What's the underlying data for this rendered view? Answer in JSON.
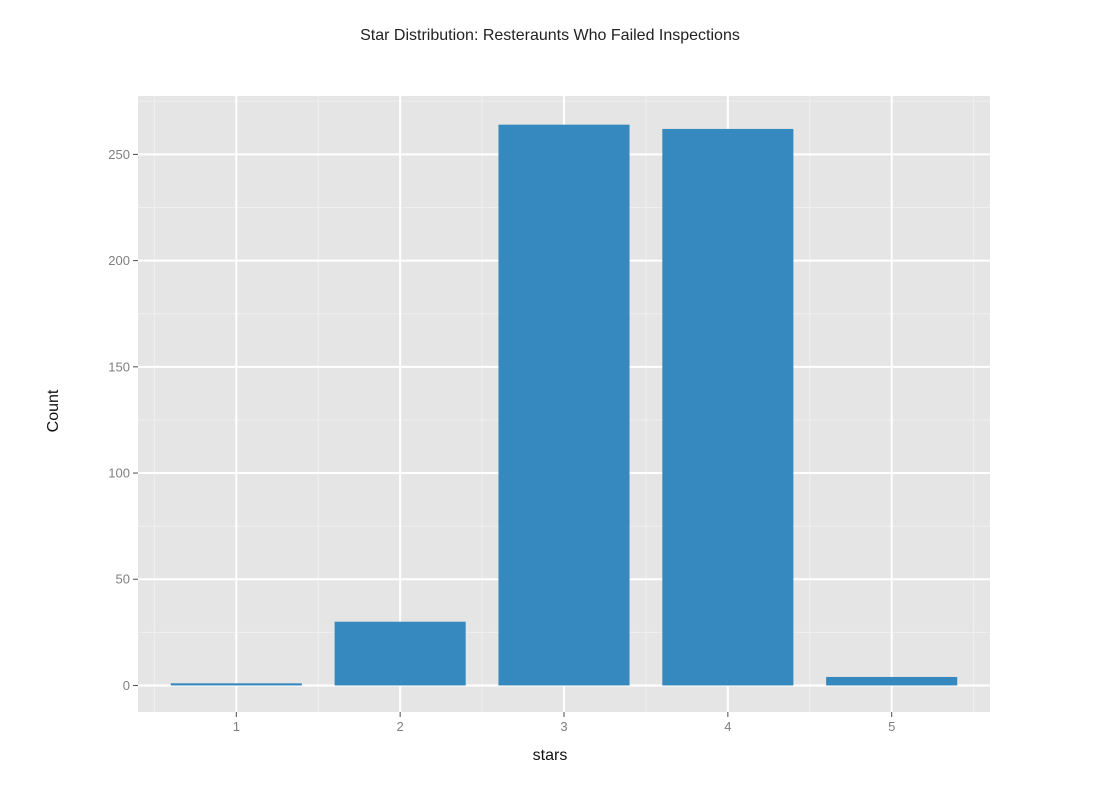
{
  "chart_data": {
    "type": "bar",
    "title": "Star Distribution: Resteraunts Who Failed Inspections",
    "xlabel": "stars",
    "ylabel": "Count",
    "categories": [
      "1",
      "2",
      "3",
      "4",
      "5"
    ],
    "values": [
      1,
      30,
      264,
      262,
      4
    ],
    "ylim": [
      -12.5,
      277.5
    ],
    "yticks": [
      0,
      50,
      100,
      150,
      200,
      250
    ],
    "grid": true,
    "legend": "none",
    "colors": {
      "bar": "#3589be",
      "panel": "#e5e5e5",
      "grid_major": "#ffffff",
      "grid_minor": "#efefef",
      "tick_text": "#7f7f7f"
    }
  }
}
